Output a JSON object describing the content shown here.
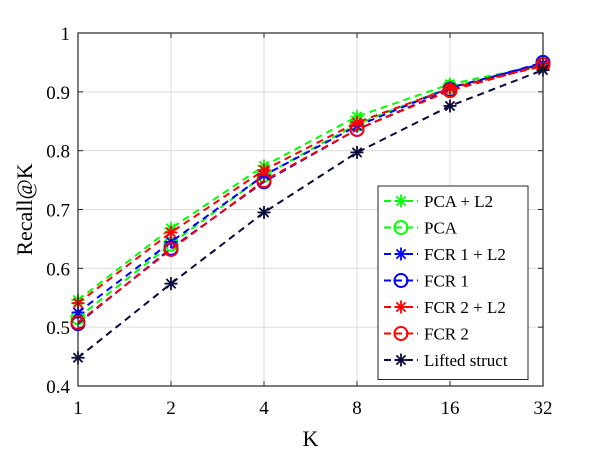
{
  "chart_data": {
    "type": "line",
    "xlabel": "K",
    "ylabel": "Recall@K",
    "x": [
      1,
      2,
      4,
      8,
      16,
      32
    ],
    "x_scale": "log2",
    "ylim": [
      0.4,
      1.0
    ],
    "yticks": [
      "0.4",
      "0.5",
      "0.6",
      "0.7",
      "0.8",
      "0.9",
      "1"
    ],
    "xticks": [
      "1",
      "2",
      "4",
      "8",
      "16",
      "32"
    ],
    "grid": true,
    "legend_position": "bottom-right",
    "series": [
      {
        "name": "PCA + L2",
        "values": [
          0.546,
          0.668,
          0.774,
          0.858,
          0.913,
          0.946
        ],
        "color": "#00ff00",
        "marker": "asterisk",
        "line": "dashed"
      },
      {
        "name": "PCA",
        "values": [
          0.516,
          0.641,
          0.758,
          0.845,
          0.908,
          0.946
        ],
        "color": "#00ff00",
        "marker": "circle",
        "line": "dashed"
      },
      {
        "name": "FCR 1 + L2",
        "values": [
          0.525,
          0.645,
          0.758,
          0.842,
          0.907,
          0.948
        ],
        "color": "#0000ff",
        "marker": "asterisk",
        "line": "dashed"
      },
      {
        "name": "FCR 1",
        "values": [
          0.506,
          0.634,
          0.747,
          0.836,
          0.904,
          0.95
        ],
        "color": "#0000ff",
        "marker": "circle",
        "line": "dashed"
      },
      {
        "name": "FCR 2 + L2",
        "values": [
          0.541,
          0.661,
          0.767,
          0.848,
          0.906,
          0.944
        ],
        "color": "#ff0000",
        "marker": "asterisk",
        "line": "dashed"
      },
      {
        "name": "FCR 2",
        "values": [
          0.508,
          0.632,
          0.749,
          0.836,
          0.902,
          0.946
        ],
        "color": "#ff0000",
        "marker": "circle",
        "line": "dashed"
      },
      {
        "name": "Lifted struct",
        "values": [
          0.448,
          0.574,
          0.695,
          0.797,
          0.876,
          0.937
        ],
        "color": "#0a0a3c",
        "marker": "asterisk",
        "line": "dashed"
      }
    ]
  }
}
